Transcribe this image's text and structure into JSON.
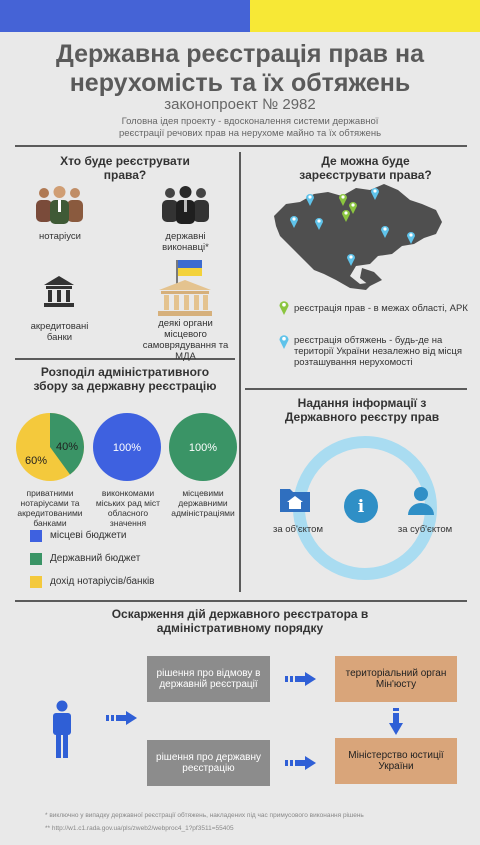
{
  "header": {
    "title_line1": "Державна реєстрація прав на",
    "title_line2": "нерухомість та їх обтяжень",
    "subtitle": "законопроект № 2982",
    "intro": "Головна ідея проекту - вдосконалення системи державної реєстрації речових прав на нерухоме майно та їх обтяжень"
  },
  "who": {
    "heading": "Хто буде реєструвати права?",
    "notaries": "нотаріуси",
    "executors": "державні виконавці*",
    "banks": "акредитовані банки",
    "local": "деякі органи місцевого самоврядування та МДА"
  },
  "where": {
    "heading": "Де можна буде зареєструвати права?",
    "legend_green": "реєстрація прав - в межах області, АРК",
    "legend_blue": "реєстрація обтяжень - будь-де на території України незалежно від місця розташування нерухомості"
  },
  "fee": {
    "heading": "Розподіл адміністративного збору за державну реєстрацію",
    "pie1_label": "приватними нотаріусами та акредитованими банками",
    "pie2_label": "виконкомами міських рад міст обласного значення",
    "pie3_label": "місцевими державними адміністраціями",
    "pie1_values": {
      "green": "40%",
      "yellow": "60%"
    },
    "pie2_value": "100%",
    "pie3_value": "100%",
    "legend": [
      "місцеві бюджети",
      "Державний бюджет",
      "дохід нотаріусів/банків"
    ],
    "colors": {
      "blue": "#3e61e0",
      "green": "#3a9466",
      "yellow": "#f4c93c"
    }
  },
  "info": {
    "heading": "Надання інформації з Державного реєстру прав",
    "by_object": "за об'єктом",
    "by_subject": "за суб'єктом",
    "center_icon": "i"
  },
  "appeal": {
    "heading": "Оскарження дій державного реєстратора в адміністративному порядку",
    "decision_refusal": "рішення про відмову в державній реєстрації",
    "decision_reg": "рішення про державну реєстрацію",
    "territorial": "територіальний орган Мін'юсту",
    "ministry": "Міністерство юстиції України"
  },
  "footnotes": {
    "note1": "* виключно у випадку державної реєстрації обтяжень, накладених під час примусового виконання рішень",
    "note2": "** http://w1.c1.rada.gov.ua/pls/zweb2/webproc4_1?pf3511=55405"
  }
}
